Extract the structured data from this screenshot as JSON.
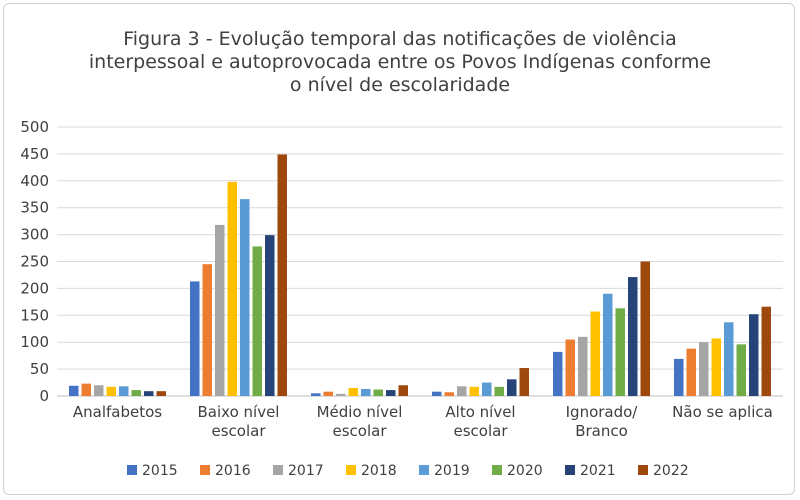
{
  "chart_data": {
    "type": "bar",
    "title_lines": [
      "Figura 3 - Evolução temporal das notificações de violência",
      "interpessoal e autoprovocada entre os Povos Indígenas conforme",
      "o nível de escolaridade"
    ],
    "categories": [
      "Analfabetos",
      "Baixo nível escolar",
      "Médio nível escolar",
      "Alto nível escolar",
      "Ignorado/ Branco",
      "Não se aplica"
    ],
    "category_lines": [
      [
        "Analfabetos"
      ],
      [
        "Baixo nível",
        "escolar"
      ],
      [
        "Médio nível",
        "escolar"
      ],
      [
        "Alto nível",
        "escolar"
      ],
      [
        "Ignorado/",
        "Branco"
      ],
      [
        "Não se aplica"
      ]
    ],
    "ylim": [
      0,
      500
    ],
    "yticks": [
      0,
      50,
      100,
      150,
      200,
      250,
      300,
      350,
      400,
      450,
      500
    ],
    "grid": true,
    "legend_position": "bottom",
    "series": [
      {
        "name": "2015",
        "color": "#4472C4",
        "values": [
          19,
          213,
          5,
          8,
          82,
          69
        ]
      },
      {
        "name": "2016",
        "color": "#ED7D31",
        "values": [
          23,
          245,
          8,
          7,
          105,
          88
        ]
      },
      {
        "name": "2017",
        "color": "#A5A5A5",
        "values": [
          20,
          318,
          4,
          18,
          110,
          100
        ]
      },
      {
        "name": "2018",
        "color": "#FFC000",
        "values": [
          17,
          398,
          15,
          17,
          157,
          107
        ]
      },
      {
        "name": "2019",
        "color": "#5B9BD5",
        "values": [
          18,
          366,
          13,
          25,
          190,
          137
        ]
      },
      {
        "name": "2020",
        "color": "#70AD47",
        "values": [
          11,
          278,
          12,
          17,
          163,
          96
        ]
      },
      {
        "name": "2021",
        "color": "#264478",
        "values": [
          9,
          299,
          11,
          31,
          221,
          152
        ]
      },
      {
        "name": "2022",
        "color": "#9E480E",
        "values": [
          9,
          449,
          20,
          52,
          250,
          166
        ]
      }
    ]
  }
}
